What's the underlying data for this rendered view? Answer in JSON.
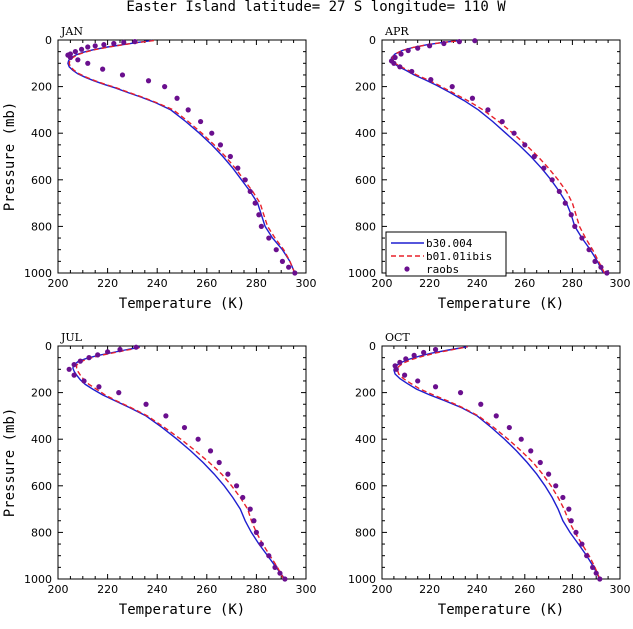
{
  "figure": {
    "title": "Easter Island  latitude= 27 S longitude= 110 W"
  },
  "colors": {
    "model_a": "#1f1fd0",
    "model_b": "#e8202a",
    "obs": "#6a0f8e"
  },
  "legend": {
    "entries": [
      "b30.004",
      "b01.01ibis",
      "raobs"
    ],
    "placement": "lower-left of APR panel"
  },
  "chart_data": [
    {
      "type": "line",
      "panel": "JAN",
      "xlabel": "Temperature (K)",
      "ylabel": "Pressure (mb)",
      "xlim": [
        200,
        300
      ],
      "ylim": [
        1000,
        0
      ],
      "xticks": [
        200,
        220,
        240,
        260,
        280,
        300
      ],
      "yticks": [
        0,
        200,
        400,
        600,
        800,
        1000
      ],
      "series": [
        {
          "name": "b30.004",
          "style": "solid",
          "x": [
            295.5,
            293.5,
            290.5,
            286.5,
            283.5,
            282.0,
            280.5,
            277.5,
            274.0,
            270.5,
            266.5,
            262.0,
            257.0,
            251.5,
            245.5,
            239.5,
            233.5,
            228.0,
            223.0,
            218.5,
            214.5,
            211.0,
            208.0,
            206.0,
            204.5,
            204.0,
            204.3,
            205.5,
            207.5,
            210.5,
            214.5,
            220.0,
            226.0,
            232.5,
            238.0
          ],
          "y": [
            1000,
            950,
            900,
            850,
            800,
            750,
            700,
            650,
            600,
            550,
            500,
            450,
            400,
            350,
            300,
            270,
            245,
            225,
            205,
            190,
            175,
            160,
            145,
            130,
            115,
            100,
            88,
            75,
            63,
            52,
            41,
            30,
            20,
            10,
            2
          ]
        },
        {
          "name": "b01.01ibis",
          "style": "dashed",
          "x": [
            295.5,
            293.5,
            291.0,
            287.5,
            284.5,
            283.0,
            281.5,
            278.5,
            275.0,
            271.5,
            267.5,
            263.0,
            258.0,
            252.5,
            246.5,
            240.0,
            234.0,
            228.5,
            223.5,
            219.0,
            215.0,
            211.5,
            208.5,
            206.5,
            205.0,
            204.5,
            204.8,
            206.0,
            208.0,
            211.0,
            215.0,
            220.5,
            226.5,
            233.0,
            239.0
          ],
          "y": [
            1000,
            950,
            900,
            850,
            800,
            750,
            700,
            650,
            600,
            550,
            500,
            450,
            400,
            350,
            300,
            270,
            245,
            225,
            205,
            190,
            175,
            160,
            145,
            130,
            115,
            100,
            88,
            75,
            63,
            52,
            41,
            30,
            20,
            10,
            2
          ]
        },
        {
          "name": "raobs",
          "style": "points",
          "x": [
            295.5,
            293.0,
            290.5,
            288.0,
            285.0,
            282.0,
            281.0,
            279.5,
            277.5,
            275.5,
            272.5,
            269.5,
            265.5,
            262.0,
            257.5,
            252.5,
            248.0,
            243.0,
            236.5,
            226.0,
            218.0,
            212.0,
            208.0,
            205.0,
            204.0,
            205.0,
            207.0,
            209.5,
            212.0,
            215.0,
            218.5,
            222.5,
            226.5,
            231.0
          ],
          "y": [
            1000,
            975,
            950,
            900,
            850,
            800,
            750,
            700,
            650,
            600,
            550,
            500,
            450,
            400,
            350,
            300,
            250,
            200,
            175,
            150,
            125,
            100,
            85,
            75,
            65,
            60,
            50,
            40,
            30,
            25,
            20,
            15,
            10,
            7
          ]
        }
      ]
    },
    {
      "type": "line",
      "panel": "APR",
      "xlabel": "Temperature (K)",
      "ylabel": "",
      "xlim": [
        200,
        300
      ],
      "ylim": [
        1000,
        0
      ],
      "xticks": [
        200,
        220,
        240,
        260,
        280,
        300
      ],
      "yticks": [
        0,
        200,
        400,
        600,
        800,
        1000
      ],
      "series": [
        {
          "name": "b30.004",
          "style": "solid",
          "x": [
            293.0,
            290.5,
            287.5,
            284.0,
            281.0,
            279.5,
            277.5,
            274.5,
            271.0,
            267.0,
            262.5,
            257.5,
            252.0,
            246.5,
            240.5,
            234.5,
            228.5,
            223.0,
            218.0,
            213.5,
            210.0,
            207.0,
            205.0,
            204.0,
            204.0,
            205.5,
            208.5,
            213.0,
            219.0,
            226.0,
            232.0
          ],
          "y": [
            1000,
            950,
            900,
            850,
            800,
            750,
            700,
            650,
            600,
            550,
            500,
            450,
            400,
            350,
            300,
            260,
            225,
            195,
            170,
            150,
            130,
            115,
            100,
            88,
            75,
            60,
            45,
            32,
            20,
            10,
            3
          ]
        },
        {
          "name": "b01.01ibis",
          "style": "dashed",
          "x": [
            293.5,
            291.0,
            288.5,
            285.5,
            283.0,
            281.5,
            280.0,
            277.5,
            274.0,
            270.0,
            265.5,
            260.5,
            255.0,
            249.0,
            242.5,
            236.0,
            229.5,
            224.0,
            219.0,
            214.5,
            211.0,
            208.0,
            205.5,
            204.5,
            204.3,
            205.5,
            208.5,
            213.0,
            219.0,
            226.0,
            233.0
          ],
          "y": [
            1000,
            950,
            900,
            850,
            800,
            750,
            700,
            650,
            600,
            550,
            500,
            450,
            400,
            350,
            300,
            260,
            225,
            195,
            170,
            150,
            130,
            115,
            100,
            88,
            75,
            60,
            45,
            32,
            20,
            10,
            3
          ]
        },
        {
          "name": "raobs",
          "style": "points",
          "x": [
            294.5,
            292.0,
            289.5,
            287.0,
            284.0,
            281.0,
            279.5,
            277.0,
            274.5,
            271.5,
            268.0,
            264.0,
            260.0,
            255.5,
            250.5,
            244.5,
            238.0,
            229.5,
            220.5,
            212.5,
            207.5,
            205.0,
            204.0,
            205.5,
            208.0,
            211.0,
            215.0,
            220.0,
            226.0,
            232.5,
            239.0
          ],
          "y": [
            1000,
            975,
            950,
            900,
            850,
            800,
            750,
            700,
            650,
            600,
            550,
            500,
            450,
            400,
            350,
            300,
            250,
            200,
            170,
            135,
            115,
            100,
            90,
            75,
            60,
            45,
            35,
            25,
            15,
            7,
            3
          ]
        }
      ]
    },
    {
      "type": "line",
      "panel": "JUL",
      "xlabel": "Temperature (K)",
      "ylabel": "Pressure (mb)",
      "xlim": [
        200,
        300
      ],
      "ylim": [
        1000,
        0
      ],
      "xticks": [
        200,
        220,
        240,
        260,
        280,
        300
      ],
      "yticks": [
        0,
        200,
        400,
        600,
        800,
        1000
      ],
      "series": [
        {
          "name": "b30.004",
          "style": "solid",
          "x": [
            291.5,
            288.0,
            284.5,
            281.0,
            278.0,
            275.5,
            273.5,
            270.5,
            267.0,
            263.0,
            258.5,
            253.5,
            248.0,
            242.0,
            235.5,
            229.0,
            223.0,
            218.0,
            214.0,
            211.0,
            209.0,
            207.5,
            206.5,
            206.0,
            206.3,
            208.0,
            211.0,
            215.5,
            221.0,
            227.0,
            233.0
          ],
          "y": [
            1000,
            950,
            900,
            850,
            800,
            750,
            700,
            650,
            600,
            550,
            500,
            450,
            400,
            350,
            300,
            265,
            235,
            210,
            185,
            165,
            145,
            125,
            108,
            95,
            82,
            68,
            55,
            42,
            30,
            17,
            5
          ]
        },
        {
          "name": "b01.01ibis",
          "style": "dashed",
          "x": [
            291.0,
            288.5,
            285.5,
            282.5,
            280.0,
            278.0,
            276.5,
            273.5,
            270.0,
            266.0,
            261.0,
            255.5,
            249.5,
            243.0,
            236.0,
            229.5,
            223.5,
            219.0,
            215.5,
            212.5,
            210.5,
            209.0,
            208.0,
            207.5,
            207.5,
            209.0,
            212.0,
            216.5,
            222.0,
            228.0,
            234.0
          ],
          "y": [
            1000,
            950,
            900,
            850,
            800,
            750,
            700,
            650,
            600,
            550,
            500,
            450,
            400,
            350,
            300,
            265,
            235,
            210,
            185,
            165,
            145,
            125,
            108,
            95,
            82,
            68,
            55,
            42,
            30,
            17,
            5
          ]
        },
        {
          "name": "raobs",
          "style": "points",
          "x": [
            291.5,
            289.5,
            287.5,
            285.0,
            282.0,
            280.0,
            279.0,
            277.5,
            274.5,
            272.0,
            268.5,
            265.0,
            261.5,
            256.5,
            251.0,
            243.5,
            235.5,
            224.5,
            216.5,
            210.5,
            206.5,
            204.5,
            206.5,
            209.0,
            212.5,
            216.0,
            220.0,
            225.0,
            231.5
          ],
          "y": [
            1000,
            975,
            950,
            900,
            850,
            800,
            750,
            700,
            650,
            600,
            550,
            500,
            450,
            400,
            350,
            300,
            250,
            200,
            175,
            150,
            125,
            100,
            80,
            65,
            50,
            38,
            25,
            15,
            5
          ]
        }
      ]
    },
    {
      "type": "line",
      "panel": "OCT",
      "xlabel": "Temperature (K)",
      "ylabel": "",
      "xlim": [
        200,
        300
      ],
      "ylim": [
        1000,
        0
      ],
      "xticks": [
        200,
        220,
        240,
        260,
        280,
        300
      ],
      "yticks": [
        0,
        200,
        400,
        600,
        800,
        1000
      ],
      "series": [
        {
          "name": "b30.004",
          "style": "solid",
          "x": [
            291.5,
            289.0,
            286.0,
            282.5,
            279.0,
            276.0,
            274.0,
            271.5,
            268.5,
            265.0,
            261.0,
            256.5,
            251.5,
            246.0,
            240.0,
            233.5,
            226.5,
            220.0,
            214.5,
            210.5,
            207.5,
            205.5,
            205.0,
            205.5,
            207.5,
            211.0,
            215.5,
            221.0,
            228.0,
            236.0
          ],
          "y": [
            1000,
            950,
            900,
            850,
            800,
            750,
            700,
            650,
            600,
            550,
            500,
            450,
            400,
            350,
            300,
            265,
            235,
            210,
            185,
            160,
            140,
            120,
            103,
            88,
            73,
            58,
            44,
            30,
            17,
            3
          ]
        },
        {
          "name": "b01.01ibis",
          "style": "dashed",
          "x": [
            291.5,
            289.5,
            287.0,
            284.0,
            281.0,
            278.5,
            276.5,
            274.0,
            271.0,
            267.5,
            263.5,
            258.5,
            253.0,
            247.0,
            240.5,
            234.0,
            227.5,
            221.5,
            216.0,
            212.0,
            209.0,
            207.0,
            206.5,
            207.0,
            209.0,
            212.5,
            217.0,
            222.5,
            229.0,
            236.0
          ],
          "y": [
            1000,
            950,
            900,
            850,
            800,
            750,
            700,
            650,
            600,
            550,
            500,
            450,
            400,
            350,
            300,
            265,
            235,
            210,
            185,
            160,
            140,
            120,
            103,
            88,
            73,
            58,
            44,
            30,
            17,
            3
          ]
        },
        {
          "name": "raobs",
          "style": "points",
          "x": [
            291.5,
            290.0,
            288.5,
            286.0,
            284.0,
            281.5,
            279.5,
            278.5,
            276.0,
            273.0,
            270.0,
            266.5,
            262.5,
            258.5,
            253.5,
            248.0,
            241.5,
            233.0,
            222.5,
            215.0,
            209.5,
            206.0,
            205.5,
            207.5,
            210.0,
            213.5,
            217.5,
            222.5
          ],
          "y": [
            1000,
            975,
            950,
            900,
            850,
            800,
            750,
            700,
            650,
            600,
            550,
            500,
            450,
            400,
            350,
            300,
            250,
            200,
            175,
            150,
            125,
            100,
            85,
            70,
            55,
            40,
            28,
            15
          ]
        }
      ]
    }
  ]
}
